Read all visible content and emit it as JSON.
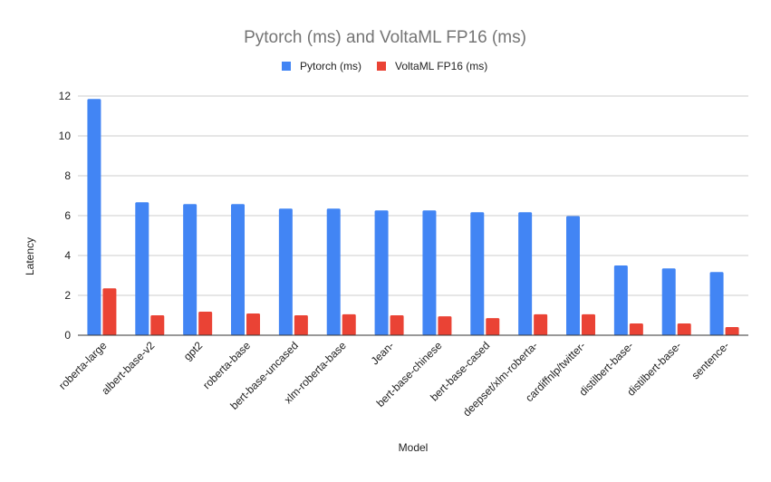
{
  "chart_data": {
    "type": "bar",
    "title": "Pytorch (ms) and VoltaML FP16 (ms)",
    "xlabel": "Model",
    "ylabel": "Latency",
    "ylim": [
      0,
      12
    ],
    "yticks": [
      0,
      2,
      4,
      6,
      8,
      10,
      12
    ],
    "grid": true,
    "legend_position": "top",
    "categories": [
      "roberta-large",
      "albert-base-v2",
      "gpt2",
      "roberta-base",
      "bert-base-uncased",
      "xlm-roberta-base",
      "Jean-",
      "bert-base-chinese",
      "bert-base-cased",
      "deepset/xlm-roberta-",
      "cardiffnlp/twitter-",
      "distilbert-base-",
      "distilbert-base-",
      "sentence-"
    ],
    "series": [
      {
        "name": "Pytorch (ms)",
        "color": "#4285f4",
        "values": [
          11.85,
          6.67,
          6.58,
          6.58,
          6.35,
          6.35,
          6.26,
          6.26,
          6.17,
          6.17,
          5.98,
          3.5,
          3.35,
          3.17
        ]
      },
      {
        "name": "VoltaML FP16 (ms)",
        "color": "#ea4335",
        "values": [
          2.35,
          1.0,
          1.18,
          1.09,
          1.0,
          1.05,
          1.0,
          0.95,
          0.86,
          1.05,
          1.05,
          0.59,
          0.59,
          0.41
        ]
      }
    ]
  }
}
